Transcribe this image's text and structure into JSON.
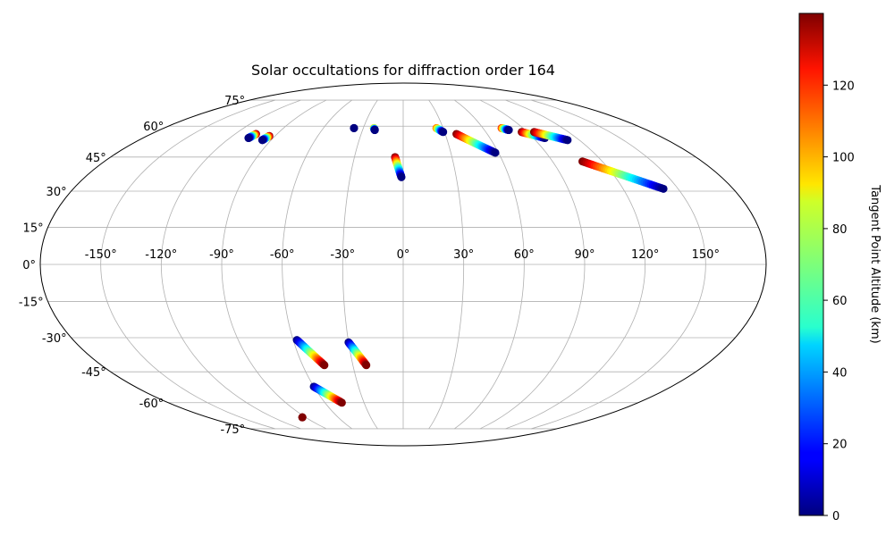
{
  "chart_data": {
    "type": "scatter",
    "projection": "mollweide",
    "title": "Solar occultations for diffraction order 164",
    "colorbar": {
      "label": "Tangent Point Altitude (km)",
      "colormap": "jet",
      "min": 0,
      "max": 140,
      "ticks": [
        0,
        20,
        40,
        60,
        80,
        100,
        120
      ],
      "tick_labels": [
        "0",
        "20",
        "40",
        "60",
        "80",
        "100",
        "120"
      ]
    },
    "lon_ticks": [
      -150,
      -120,
      -90,
      -60,
      -30,
      0,
      30,
      60,
      90,
      120,
      150
    ],
    "lon_tick_labels": [
      "-150°",
      "-120°",
      "-90°",
      "-60°",
      "-30°",
      "0°",
      "30°",
      "60°",
      "90°",
      "120°",
      "150°"
    ],
    "lat_ticks": [
      75,
      60,
      45,
      30,
      15,
      0,
      -15,
      -30,
      -45,
      -60,
      -75
    ],
    "lat_tick_labels": [
      "75°",
      "60°",
      "45°",
      "30°",
      "15°",
      "0°",
      "-15°",
      "-30°",
      "-45°",
      "-60°",
      "-75°"
    ],
    "grid": true,
    "legend": "none",
    "series": [
      {
        "start": [
          -105,
          56
        ],
        "end": [
          -107,
          54
        ],
        "alt_range": [
          140,
          0
        ]
      },
      {
        "start": [
          -94,
          55
        ],
        "end": [
          -96,
          53
        ],
        "alt_range": [
          140,
          0
        ]
      },
      {
        "start": [
          -37,
          59
        ],
        "end": [
          -37,
          59
        ],
        "alt_range": [
          0,
          0
        ]
      },
      {
        "start": [
          -22,
          59
        ],
        "end": [
          -21,
          58
        ],
        "alt_range": [
          100,
          0
        ]
      },
      {
        "start": [
          -5,
          45
        ],
        "end": [
          -1,
          36
        ],
        "alt_range": [
          140,
          0
        ]
      },
      {
        "start": [
          25,
          59
        ],
        "end": [
          29,
          57
        ],
        "alt_range": [
          110,
          0
        ]
      },
      {
        "start": [
          38,
          56
        ],
        "end": [
          58,
          47
        ],
        "alt_range": [
          140,
          0
        ]
      },
      {
        "start": [
          74,
          59
        ],
        "end": [
          78,
          58
        ],
        "alt_range": [
          120,
          0
        ]
      },
      {
        "start": [
          86,
          57
        ],
        "end": [
          98,
          54
        ],
        "alt_range": [
          140,
          0
        ]
      },
      {
        "start": [
          95,
          57
        ],
        "end": [
          112,
          53
        ],
        "alt_range": [
          140,
          0
        ]
      },
      {
        "start": [
          108,
          43
        ],
        "end": [
          142,
          31
        ],
        "alt_range": [
          140,
          0
        ]
      },
      {
        "start": [
          -58,
          -31
        ],
        "end": [
          -47,
          -42
        ],
        "alt_range": [
          0,
          140
        ]
      },
      {
        "start": [
          -30,
          -32
        ],
        "end": [
          -22,
          -42
        ],
        "alt_range": [
          0,
          140
        ]
      },
      {
        "start": [
          -60,
          -52
        ],
        "end": [
          -47,
          -60
        ],
        "alt_range": [
          0,
          140
        ]
      },
      {
        "start": [
          -93,
          -68
        ],
        "end": [
          -93,
          -68
        ],
        "alt_range": [
          140,
          140
        ]
      }
    ]
  }
}
